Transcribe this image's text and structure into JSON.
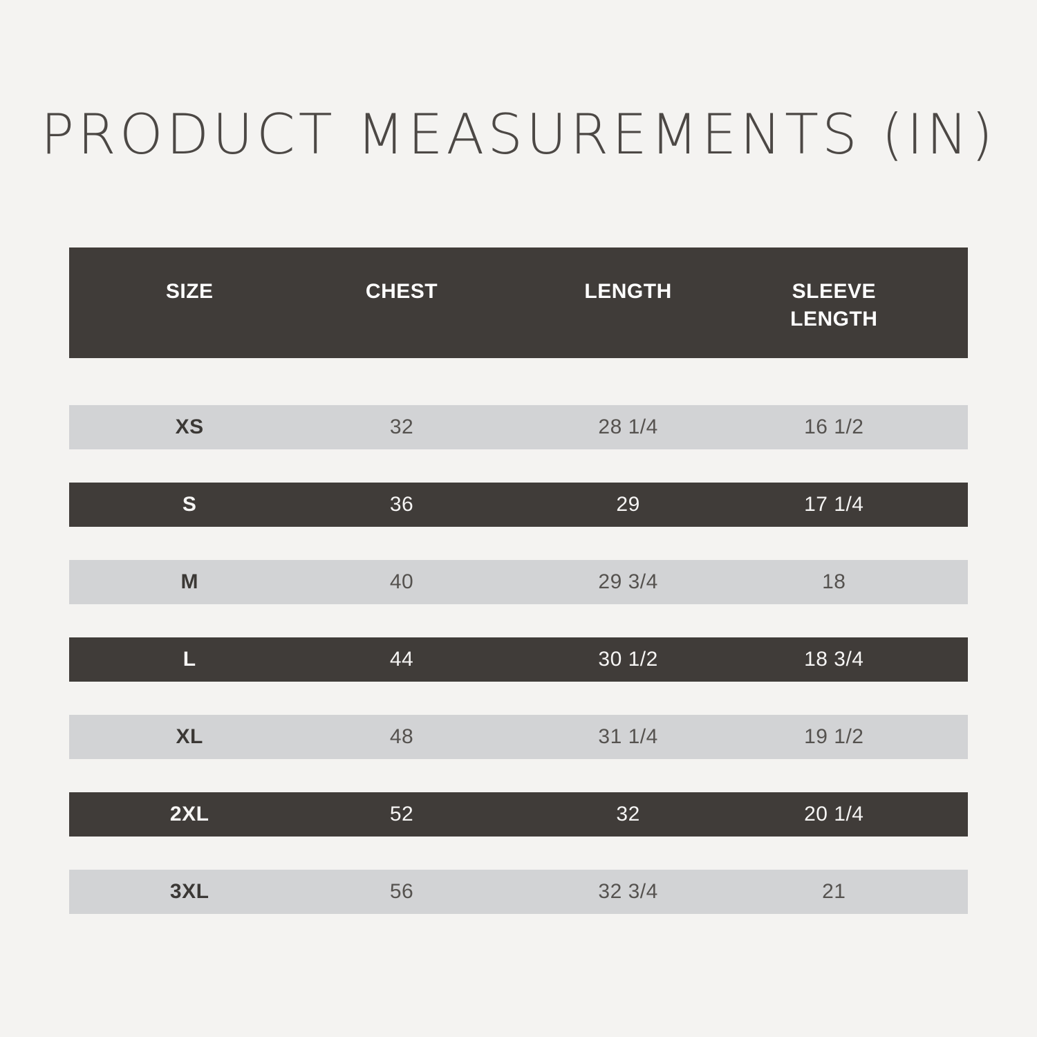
{
  "title": "PRODUCT MEASUREMENTS (IN)",
  "chart_data": {
    "type": "table",
    "title": "PRODUCT MEASUREMENTS (IN)",
    "columns": [
      "SIZE",
      "CHEST",
      "LENGTH",
      "SLEEVE LENGTH"
    ],
    "rows": [
      [
        "XS",
        "32",
        "28 1/4",
        "16 1/2"
      ],
      [
        "S",
        "36",
        "29",
        "17 1/4"
      ],
      [
        "M",
        "40",
        "29 3/4",
        "18"
      ],
      [
        "L",
        "44",
        "30 1/2",
        "18 3/4"
      ],
      [
        "XL",
        "48",
        "31 1/4",
        "19 1/2"
      ],
      [
        "2XL",
        "52",
        "32",
        "20 1/4"
      ],
      [
        "3XL",
        "56",
        "32 3/4",
        "21"
      ]
    ],
    "row_styles": [
      "light",
      "dark",
      "light",
      "dark",
      "light",
      "dark",
      "light"
    ],
    "legend": "none",
    "grid": "off"
  },
  "colors": {
    "page-bg": "#f4f3f1",
    "title-text": "#4c4845",
    "header-bg": "#403c39",
    "header-text": "#ffffff",
    "row-light-bg": "#d2d3d5",
    "row-light-text": "#55524f",
    "row-light-label": "#3b3835",
    "row-dark-bg": "#403c39",
    "row-dark-text": "#f6f5f4"
  }
}
